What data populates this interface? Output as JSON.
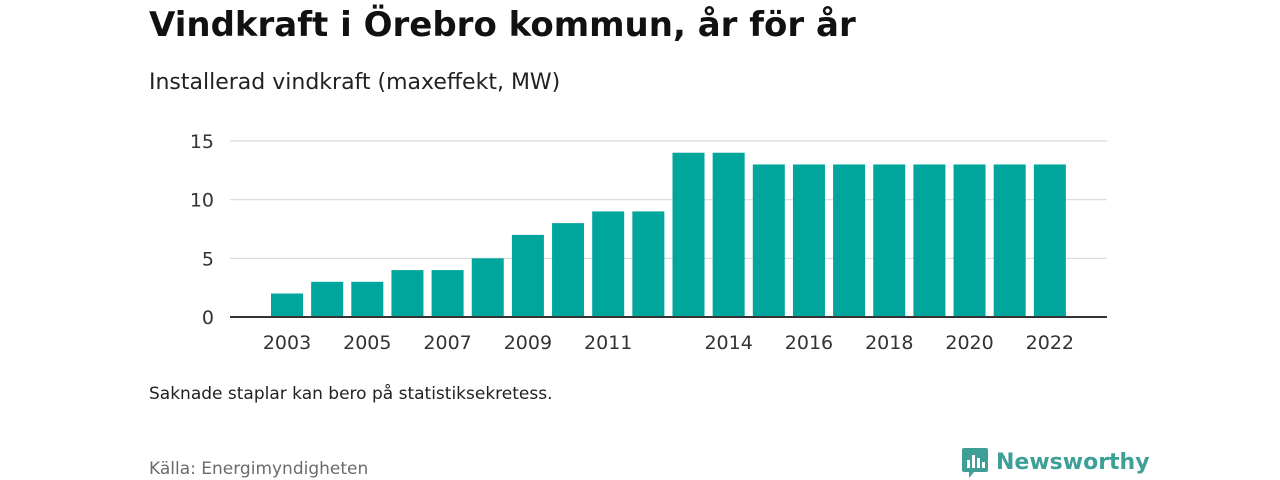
{
  "title": "Vindkraft i Örebro kommun, år för år",
  "subtitle": "Installerad vindkraft (maxeffekt, MW)",
  "note": "Saknade staplar kan bero på statistiksekretess.",
  "source": "Källa: Energimyndigheten",
  "brand": {
    "name": "Newsworthy",
    "logo_icon": "bar-chart-speech-bubble-icon",
    "color": "#3d9f96"
  },
  "colors": {
    "bar": "#00a59b",
    "grid": "#d9d9d9",
    "axis": "#333333"
  },
  "chart_data": {
    "type": "bar",
    "title": "Vindkraft i Örebro kommun, år för år",
    "subtitle": "Installerad vindkraft (maxeffekt, MW)",
    "xlabel": "",
    "ylabel": "",
    "categories": [
      "2003",
      "2004",
      "2005",
      "2006",
      "2007",
      "2008",
      "2009",
      "2010",
      "2011",
      "2012",
      "2013",
      "2014",
      "2015",
      "2016",
      "2017",
      "2018",
      "2019",
      "2020",
      "2021",
      "2022"
    ],
    "values": [
      2,
      3,
      3,
      4,
      4,
      5,
      7,
      8,
      9,
      9,
      14,
      14,
      13,
      13,
      13,
      13,
      13,
      13,
      13,
      13
    ],
    "x_tick_labels": [
      "2003",
      "2005",
      "2007",
      "2009",
      "2011",
      "2014",
      "2016",
      "2018",
      "2020",
      "2022"
    ],
    "y_ticks": [
      0,
      5,
      10,
      15
    ],
    "ylim": [
      0,
      15
    ],
    "grid": true,
    "legend": "none"
  }
}
